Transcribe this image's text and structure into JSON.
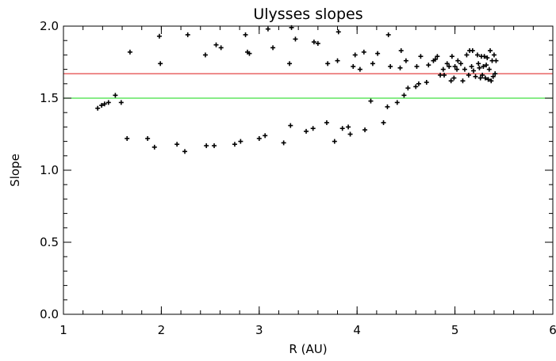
{
  "chart_data": {
    "type": "scatter",
    "title": "Ulysses slopes",
    "xlabel": "R (AU)",
    "ylabel": "Slope",
    "xlim": [
      1,
      6
    ],
    "ylim": [
      0.0,
      2.0
    ],
    "x_ticks": [
      "1",
      "2",
      "3",
      "4",
      "5",
      "6"
    ],
    "y_ticks": [
      "0.0",
      "0.5",
      "1.0",
      "1.5",
      "2.0"
    ],
    "grid": false,
    "legend": "none",
    "reference_lines": [
      {
        "y": 1.67,
        "color": "#e03030"
      },
      {
        "y": 1.5,
        "color": "#40e040"
      }
    ],
    "series": [
      {
        "marker": "+",
        "color": "#000000",
        "points": [
          [
            1.35,
            1.43
          ],
          [
            1.39,
            1.45
          ],
          [
            1.42,
            1.46
          ],
          [
            1.46,
            1.47
          ],
          [
            1.53,
            1.52
          ],
          [
            1.59,
            1.47
          ],
          [
            1.65,
            1.22
          ],
          [
            1.68,
            1.82
          ],
          [
            1.86,
            1.22
          ],
          [
            1.93,
            1.16
          ],
          [
            1.98,
            1.93
          ],
          [
            1.99,
            1.74
          ],
          [
            2.16,
            1.18
          ],
          [
            2.24,
            1.13
          ],
          [
            2.27,
            1.94
          ],
          [
            2.45,
            1.8
          ],
          [
            2.46,
            1.17
          ],
          [
            2.54,
            1.17
          ],
          [
            2.56,
            1.87
          ],
          [
            2.61,
            1.85
          ],
          [
            2.75,
            1.18
          ],
          [
            2.81,
            1.2
          ],
          [
            2.86,
            1.94
          ],
          [
            2.88,
            1.82
          ],
          [
            2.9,
            1.81
          ],
          [
            3.0,
            1.22
          ],
          [
            3.06,
            1.24
          ],
          [
            3.09,
            1.98
          ],
          [
            3.14,
            1.85
          ],
          [
            3.25,
            1.19
          ],
          [
            3.31,
            1.74
          ],
          [
            3.32,
            1.31
          ],
          [
            3.33,
            1.99
          ],
          [
            3.37,
            1.91
          ],
          [
            3.48,
            1.27
          ],
          [
            3.55,
            1.29
          ],
          [
            3.56,
            1.89
          ],
          [
            3.6,
            1.88
          ],
          [
            3.69,
            1.33
          ],
          [
            3.7,
            1.74
          ],
          [
            3.77,
            1.2
          ],
          [
            3.8,
            1.76
          ],
          [
            3.81,
            1.96
          ],
          [
            3.85,
            1.29
          ],
          [
            3.91,
            1.3
          ],
          [
            3.93,
            1.25
          ],
          [
            3.96,
            1.72
          ],
          [
            3.98,
            1.8
          ],
          [
            4.03,
            1.7
          ],
          [
            4.07,
            1.82
          ],
          [
            4.08,
            1.28
          ],
          [
            4.14,
            1.48
          ],
          [
            4.16,
            1.74
          ],
          [
            4.21,
            1.81
          ],
          [
            4.27,
            1.33
          ],
          [
            4.31,
            1.44
          ],
          [
            4.32,
            1.94
          ],
          [
            4.34,
            1.72
          ],
          [
            4.41,
            1.47
          ],
          [
            4.44,
            1.71
          ],
          [
            4.45,
            1.83
          ],
          [
            4.48,
            1.52
          ],
          [
            4.5,
            1.76
          ],
          [
            4.52,
            1.57
          ],
          [
            4.6,
            1.58
          ],
          [
            4.61,
            1.72
          ],
          [
            4.63,
            1.6
          ],
          [
            4.65,
            1.79
          ],
          [
            4.71,
            1.61
          ],
          [
            4.73,
            1.73
          ],
          [
            4.78,
            1.76
          ],
          [
            4.8,
            1.77
          ],
          [
            4.82,
            1.79
          ],
          [
            4.85,
            1.66
          ],
          [
            4.88,
            1.7
          ],
          [
            4.89,
            1.66
          ],
          [
            4.92,
            1.74
          ],
          [
            4.94,
            1.72
          ],
          [
            4.96,
            1.62
          ],
          [
            4.97,
            1.79
          ],
          [
            4.99,
            1.64
          ],
          [
            5.0,
            1.72
          ],
          [
            5.02,
            1.7
          ],
          [
            5.03,
            1.76
          ],
          [
            5.06,
            1.74
          ],
          [
            5.08,
            1.62
          ],
          [
            5.1,
            1.7
          ],
          [
            5.12,
            1.8
          ],
          [
            5.14,
            1.66
          ],
          [
            5.15,
            1.83
          ],
          [
            5.17,
            1.72
          ],
          [
            5.18,
            1.83
          ],
          [
            5.19,
            1.69
          ],
          [
            5.21,
            1.65
          ],
          [
            5.23,
            1.8
          ],
          [
            5.24,
            1.74
          ],
          [
            5.25,
            1.71
          ],
          [
            5.26,
            1.64
          ],
          [
            5.27,
            1.79
          ],
          [
            5.28,
            1.66
          ],
          [
            5.29,
            1.72
          ],
          [
            5.3,
            1.79
          ],
          [
            5.31,
            1.64
          ],
          [
            5.32,
            1.73
          ],
          [
            5.33,
            1.78
          ],
          [
            5.34,
            1.63
          ],
          [
            5.35,
            1.7
          ],
          [
            5.36,
            1.83
          ],
          [
            5.37,
            1.62
          ],
          [
            5.38,
            1.76
          ],
          [
            5.39,
            1.65
          ],
          [
            5.4,
            1.8
          ],
          [
            5.41,
            1.67
          ],
          [
            5.42,
            1.76
          ]
        ]
      }
    ]
  }
}
